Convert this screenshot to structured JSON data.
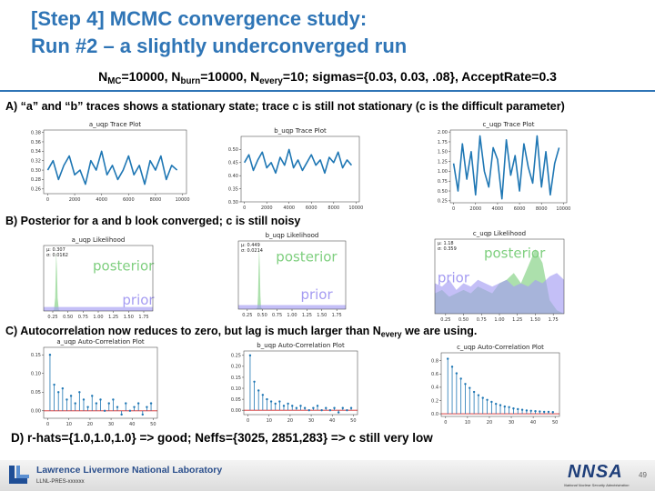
{
  "header": {
    "title_line1": "[Step 4] MCMC convergence study:",
    "title_line2": "Run #2 – a slightly underconverged run"
  },
  "params": [
    {
      "text": "N"
    },
    {
      "sub": "MC"
    },
    {
      "text": "=10000, N"
    },
    {
      "sub": "burn"
    },
    {
      "text": "=10000, N"
    },
    {
      "sub": "every"
    },
    {
      "text": "=10; sigmas={0.03, 0.03, .08}, AcceptRate=0.3"
    }
  ],
  "sections": {
    "a": [
      {
        "text": "A) “a” and “b” traces shows a stationary state; trace c is still not stationary (c is the difficult parameter)"
      }
    ],
    "b": [
      {
        "text": "B) Posterior for a and b look converged; c is still noisy"
      }
    ],
    "c": [
      {
        "text": "C) Autocorrelation now reduces to zero, but lag is much larger than N"
      },
      {
        "sub": "every"
      },
      {
        "text": " we are using."
      }
    ],
    "d": [
      {
        "text": "D) r-hats={1.0,1.0,1.0} => good; Neffs={3025, 2851,283} => c still very low"
      }
    ]
  },
  "chart_data": [
    {
      "type": "trace",
      "title": "a_uqp Trace Plot",
      "color": "#1f77b4",
      "xlim": [
        -300,
        10300
      ],
      "ylim": [
        0.25,
        0.385
      ],
      "xticks": [
        0,
        2000,
        4000,
        6000,
        8000,
        10000
      ],
      "yticks": [
        0.26,
        0.28,
        {
          "value": 0.3,
          "label": "0.30"
        },
        0.32,
        0.34,
        0.36,
        0.38
      ],
      "x": [
        0,
        400,
        800,
        1200,
        1600,
        2000,
        2400,
        2800,
        3200,
        3600,
        4000,
        4400,
        4800,
        5200,
        5600,
        6000,
        6400,
        6800,
        7200,
        7600,
        8000,
        8400,
        8800,
        9200,
        9600
      ],
      "values": [
        0.3,
        0.32,
        0.28,
        0.31,
        0.33,
        0.29,
        0.3,
        0.27,
        0.32,
        0.3,
        0.34,
        0.29,
        0.31,
        0.28,
        0.3,
        0.33,
        0.29,
        0.31,
        0.27,
        0.32,
        0.3,
        0.33,
        0.28,
        0.31,
        0.3
      ]
    },
    {
      "type": "trace",
      "title": "b_uqp Trace Plot",
      "color": "#1f77b4",
      "xlim": [
        -300,
        10300
      ],
      "ylim": [
        0.3,
        0.55
      ],
      "xticks": [
        0,
        2000,
        4000,
        6000,
        8000,
        10000
      ],
      "yticks": [
        {
          "value": 0.3,
          "label": "0.30"
        },
        0.35,
        {
          "value": 0.4,
          "label": "0.40"
        },
        0.45,
        {
          "value": 0.5,
          "label": "0.50"
        }
      ],
      "x": [
        0,
        400,
        800,
        1200,
        1600,
        2000,
        2400,
        2800,
        3200,
        3600,
        4000,
        4400,
        4800,
        5200,
        5600,
        6000,
        6400,
        6800,
        7200,
        7600,
        8000,
        8400,
        8800,
        9200,
        9600
      ],
      "values": [
        0.45,
        0.48,
        0.42,
        0.46,
        0.49,
        0.43,
        0.45,
        0.41,
        0.47,
        0.44,
        0.5,
        0.43,
        0.46,
        0.42,
        0.45,
        0.48,
        0.44,
        0.46,
        0.41,
        0.47,
        0.45,
        0.49,
        0.43,
        0.46,
        0.44
      ]
    },
    {
      "type": "trace",
      "title": "c_uqp Trace Plot",
      "color": "#1f77b4",
      "xlim": [
        -300,
        10300
      ],
      "ylim": [
        0.2,
        2.05
      ],
      "xticks": [
        0,
        2000,
        4000,
        6000,
        8000,
        10000
      ],
      "yticks": [
        0.25,
        {
          "value": 0.5,
          "label": "0.50"
        },
        0.75,
        {
          "value": 1,
          "label": "1.00"
        },
        1.25,
        {
          "value": 1.5,
          "label": "1.50"
        },
        1.75,
        {
          "value": 2,
          "label": "2.00"
        }
      ],
      "x": [
        0,
        400,
        800,
        1200,
        1600,
        2000,
        2400,
        2800,
        3200,
        3600,
        4000,
        4400,
        4800,
        5200,
        5600,
        6000,
        6400,
        6800,
        7200,
        7600,
        8000,
        8400,
        8800,
        9200,
        9600
      ],
      "values": [
        1.2,
        0.5,
        1.7,
        0.8,
        1.5,
        0.4,
        1.9,
        1.0,
        0.6,
        1.6,
        1.3,
        0.3,
        1.8,
        0.9,
        1.4,
        0.5,
        1.7,
        1.1,
        0.7,
        1.9,
        0.6,
        1.5,
        0.4,
        1.2,
        1.6
      ]
    },
    {
      "type": "density",
      "title": "a_uqp Likelihood",
      "xlim": [
        0.1,
        1.9
      ],
      "ylim": [
        0,
        10
      ],
      "xticks": [
        0.25,
        {
          "value": 0.5,
          "label": "0.50"
        },
        0.75,
        {
          "value": 1,
          "label": "1.00"
        },
        1.25,
        {
          "value": 1.5,
          "label": "1.50"
        },
        1.75
      ],
      "stats": [
        "μ: 0.307",
        "σ: 0.0162"
      ],
      "series": [
        {
          "name": "posterior",
          "color": "#7fcf7f",
          "x": [
            0.25,
            0.27,
            0.29,
            0.3,
            0.307,
            0.32,
            0.33,
            0.35,
            0.37
          ],
          "values": [
            0,
            0.2,
            2,
            6,
            9,
            6,
            2,
            0.2,
            0
          ]
        },
        {
          "name": "prior",
          "color": "#a59cf2",
          "x": [
            0.1,
            1.9
          ],
          "values": [
            0.6,
            0.6
          ]
        }
      ]
    },
    {
      "type": "density",
      "title": "b_uqp Likelihood",
      "xlim": [
        0.1,
        1.9
      ],
      "ylim": [
        0,
        10
      ],
      "xticks": [
        0.25,
        {
          "value": 0.5,
          "label": "0.50"
        },
        0.75,
        {
          "value": 1,
          "label": "1.00"
        },
        1.25,
        {
          "value": 1.5,
          "label": "1.50"
        },
        1.75
      ],
      "stats": [
        "μ: 0.449",
        "σ: 0.0214"
      ],
      "series": [
        {
          "name": "posterior",
          "color": "#7fcf7f",
          "x": [
            0.4,
            0.42,
            0.43,
            0.44,
            0.449,
            0.46,
            0.47,
            0.48,
            0.5
          ],
          "values": [
            0,
            0.3,
            2,
            6,
            9,
            6,
            2,
            0.3,
            0
          ]
        },
        {
          "name": "prior",
          "color": "#a59cf2",
          "x": [
            0.1,
            1.9
          ],
          "values": [
            0.6,
            0.6
          ]
        }
      ]
    },
    {
      "type": "density",
      "title": "c_uqp Likelihood",
      "xlim": [
        0.1,
        1.9
      ],
      "ylim": [
        0,
        1.1
      ],
      "xticks": [
        0.25,
        {
          "value": 0.5,
          "label": "0.50"
        },
        0.75,
        {
          "value": 1,
          "label": "1.00"
        },
        1.25,
        {
          "value": 1.5,
          "label": "1.50"
        },
        1.75
      ],
      "stats": [
        "μ: 1.18",
        "σ: 0.359"
      ],
      "series": [
        {
          "name": "posterior",
          "color": "#7fcf7f",
          "x": [
            0.1,
            0.2,
            0.3,
            0.4,
            0.5,
            0.6,
            0.7,
            0.8,
            0.9,
            1.0,
            1.1,
            1.2,
            1.3,
            1.4,
            1.5,
            1.6,
            1.7,
            1.8,
            1.9
          ],
          "values": [
            0.3,
            0.35,
            0.25,
            0.3,
            0.35,
            0.3,
            0.4,
            0.35,
            0.3,
            0.45,
            0.5,
            0.6,
            0.45,
            0.7,
            0.95,
            0.75,
            0.2,
            0.05,
            0
          ]
        },
        {
          "name": "prior",
          "color": "#a59cf2",
          "x": [
            0.1,
            0.2,
            0.3,
            0.4,
            0.5,
            0.6,
            0.7,
            0.8,
            0.9,
            1.0,
            1.1,
            1.2,
            1.3,
            1.4,
            1.5,
            1.6,
            1.7,
            1.8,
            1.9
          ],
          "values": [
            0.45,
            0.4,
            0.5,
            0.35,
            0.45,
            0.4,
            0.5,
            0.45,
            0.4,
            0.45,
            0.5,
            0.4,
            0.45,
            0.4,
            0.5,
            0.45,
            0.55,
            0.6,
            0.5
          ]
        }
      ]
    },
    {
      "type": "stem",
      "title": "a_uqp Auto-Correlation Plot",
      "color": "#1f77b4",
      "baseline_color": "#d62728",
      "xlim": [
        -2,
        52
      ],
      "ylim": [
        -0.02,
        0.17
      ],
      "xticks": [
        0,
        10,
        20,
        30,
        40,
        50
      ],
      "yticks": [
        {
          "value": 0,
          "label": "0.00"
        },
        0.05,
        {
          "value": 0.1,
          "label": "0.10"
        },
        0.15
      ],
      "x": [
        1,
        3,
        5,
        7,
        9,
        11,
        13,
        15,
        17,
        19,
        21,
        23,
        25,
        27,
        29,
        31,
        33,
        35,
        37,
        39,
        41,
        43,
        45,
        47,
        49
      ],
      "values": [
        0.15,
        0.07,
        0.05,
        0.06,
        0.03,
        0.04,
        0.02,
        0.05,
        0.03,
        0.01,
        0.04,
        0.02,
        0.03,
        0.0,
        0.02,
        0.03,
        0.01,
        -0.01,
        0.02,
        0.0,
        0.01,
        0.02,
        -0.01,
        0.01,
        0.02
      ]
    },
    {
      "type": "stem",
      "title": "b_uqp Auto-Correlation Plot",
      "color": "#1f77b4",
      "baseline_color": "#d62728",
      "xlim": [
        -2,
        52
      ],
      "ylim": [
        -0.02,
        0.27
      ],
      "xticks": [
        0,
        10,
        20,
        30,
        40,
        50
      ],
      "yticks": [
        {
          "value": 0,
          "label": "0.00"
        },
        0.05,
        {
          "value": 0.1,
          "label": "0.10"
        },
        0.15,
        {
          "value": 0.2,
          "label": "0.20"
        },
        0.25
      ],
      "x": [
        1,
        3,
        5,
        7,
        9,
        11,
        13,
        15,
        17,
        19,
        21,
        23,
        25,
        27,
        29,
        31,
        33,
        35,
        37,
        39,
        41,
        43,
        45,
        47,
        49
      ],
      "values": [
        0.25,
        0.13,
        0.09,
        0.07,
        0.05,
        0.04,
        0.03,
        0.04,
        0.02,
        0.03,
        0.02,
        0.01,
        0.02,
        0.01,
        0.0,
        0.01,
        0.02,
        0.0,
        0.01,
        0.0,
        0.01,
        -0.01,
        0.01,
        0.0,
        0.01
      ]
    },
    {
      "type": "stem",
      "title": "c_uqp Auto-Correlation Plot",
      "color": "#1f77b4",
      "baseline_color": "#d62728",
      "xlim": [
        -2,
        52
      ],
      "ylim": [
        -0.04,
        0.92
      ],
      "xticks": [
        0,
        10,
        20,
        30,
        40,
        50
      ],
      "yticks": [
        {
          "value": 0,
          "label": "0.0"
        },
        0.2,
        0.4,
        0.6,
        0.8
      ],
      "x": [
        1,
        3,
        5,
        7,
        9,
        11,
        13,
        15,
        17,
        19,
        21,
        23,
        25,
        27,
        29,
        31,
        33,
        35,
        37,
        39,
        41,
        43,
        45,
        47,
        49
      ],
      "values": [
        0.83,
        0.71,
        0.61,
        0.53,
        0.45,
        0.39,
        0.33,
        0.28,
        0.24,
        0.21,
        0.18,
        0.15,
        0.13,
        0.11,
        0.1,
        0.08,
        0.07,
        0.06,
        0.05,
        0.045,
        0.04,
        0.035,
        0.03,
        0.03,
        0.025
      ]
    }
  ],
  "footer": {
    "lab": "Lawrence Livermore National Laboratory",
    "code": "LLNL-PRES-xxxxxx",
    "page": "49",
    "logo": "NNSA",
    "agency": "National Nuclear Security Administration"
  }
}
